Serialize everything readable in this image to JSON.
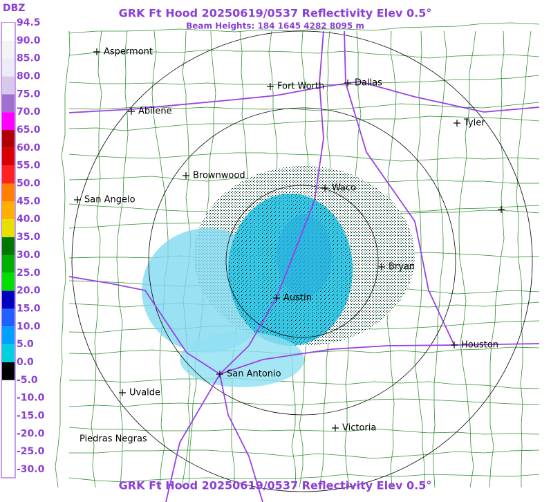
{
  "header": {
    "title": "GRK Ft Hood 20250619/0537 Reflectivity Elev 0.5°",
    "subtitle": "Beam Heights: 184 1645 4282 8095 m"
  },
  "legend": {
    "unit": "DBZ",
    "labels": [
      "94.5",
      "90.0",
      "85.0",
      "80.0",
      "75.0",
      "70.0",
      "65.0",
      "60.0",
      "55.0",
      "50.0",
      "45.0",
      "40.0",
      "35.0",
      "30.0",
      "25.0",
      "20.0",
      "15.0",
      "10.0",
      "5.0",
      "0.0",
      "-5.0",
      "-10.0",
      "-15.0",
      "-20.0",
      "-25.0",
      "-30.0"
    ]
  },
  "cities": [
    "Aspermont",
    "Fort Worth",
    "Dallas",
    "Abilene",
    "Tyler",
    "Brownwood",
    "Waco",
    "San Angelo",
    "Bryan",
    "Austin",
    "Houston",
    "San Antonio",
    "Uvalde",
    "Victoria",
    "Piedras Negras"
  ]
}
